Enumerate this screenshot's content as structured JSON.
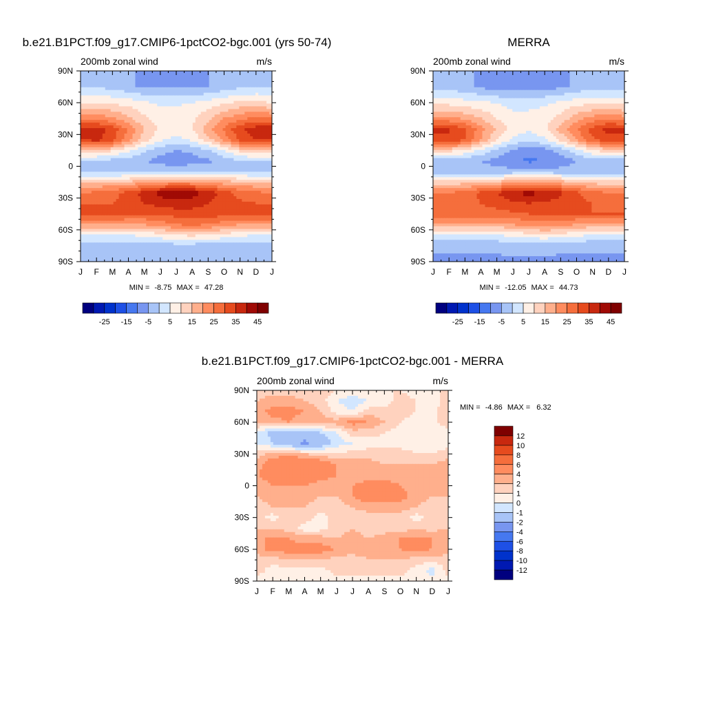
{
  "colors": {
    "full_field": [
      "#00007F",
      "#0019B2",
      "#0032CC",
      "#1E50E6",
      "#4678F0",
      "#7896F0",
      "#A8C4F7",
      "#D2E6FF",
      "#FFF0E6",
      "#FFD2BE",
      "#FFAF8C",
      "#FF8C5F",
      "#F56E3C",
      "#E64B1E",
      "#C8280F",
      "#A00A05",
      "#7F0000"
    ],
    "difference": [
      "#00007F",
      "#0019B2",
      "#0032CC",
      "#1E50E6",
      "#4678F0",
      "#7896F0",
      "#A8C4F7",
      "#D2E6FF",
      "#FFF0E6",
      "#FFD2BE",
      "#FFAF8C",
      "#FF8C5F",
      "#F56E3C",
      "#E64B1E",
      "#C8280F",
      "#7F0000"
    ]
  },
  "chart_data": [
    {
      "type": "heatmap",
      "title": "b.e21.B1PCT.f09_g17.CMIP6-1pctCO2-bgc.001 (yrs 50-74)",
      "left_label": "200mb zonal wind",
      "right_label": "m/s",
      "x_ticks": [
        "J",
        "F",
        "M",
        "A",
        "M",
        "J",
        "J",
        "A",
        "S",
        "O",
        "N",
        "D",
        "J"
      ],
      "y_ticks": [
        "90N",
        "60N",
        "30N",
        "0",
        "30S",
        "60S",
        "90S"
      ],
      "xlim": [
        0,
        12
      ],
      "ylim": [
        -90,
        90
      ],
      "stats": {
        "min_label": "MIN =",
        "min": "-8.75",
        "max_label": "MAX =",
        "max": "47.28"
      },
      "colorbar": {
        "orientation": "horizontal",
        "levels": [
          -30,
          -25,
          -20,
          -15,
          -10,
          -5,
          0,
          5,
          10,
          15,
          20,
          25,
          30,
          35,
          40,
          45
        ],
        "labels": [
          "-25",
          "-15",
          "-5",
          "5",
          "15",
          "25",
          "35",
          "45"
        ]
      },
      "field": {
        "lat": [
          90,
          75,
          60,
          45,
          35,
          25,
          15,
          5,
          -5,
          -15,
          -25,
          -35,
          -45,
          -55,
          -65,
          -75,
          -90
        ],
        "month": [
          0,
          1,
          2,
          3,
          4,
          5,
          6,
          7,
          8,
          9,
          10,
          11,
          12
        ],
        "values": [
          [
            -5,
            -5,
            -5,
            -5,
            -5,
            -5,
            -5,
            -5,
            -5,
            -5,
            -5,
            -5,
            -5
          ],
          [
            0,
            0,
            -2,
            -4,
            -6,
            -6,
            -6,
            -6,
            -5,
            -3,
            -1,
            0,
            0
          ],
          [
            10,
            10,
            9,
            8,
            6,
            4,
            4,
            5,
            7,
            9,
            11,
            11,
            10
          ],
          [
            25,
            24,
            21,
            16,
            11,
            8,
            8,
            9,
            14,
            20,
            24,
            26,
            25
          ],
          [
            38,
            37,
            33,
            24,
            15,
            9,
            7,
            10,
            18,
            26,
            34,
            38,
            38
          ],
          [
            35,
            37,
            32,
            22,
            12,
            6,
            3,
            6,
            13,
            22,
            31,
            35,
            35
          ],
          [
            15,
            14,
            11,
            6,
            1,
            -3,
            -5,
            -4,
            -1,
            5,
            12,
            15,
            15
          ],
          [
            0,
            -1,
            -2,
            -3,
            -5,
            -7,
            -8,
            -7,
            -6,
            -3,
            -1,
            0,
            0
          ],
          [
            -2,
            -2,
            -2,
            -2,
            -1,
            -1,
            -1,
            -1,
            -1,
            -1,
            -2,
            -2,
            -2
          ],
          [
            15,
            15,
            15,
            16,
            18,
            20,
            22,
            21,
            19,
            17,
            16,
            15,
            15
          ],
          [
            25,
            26,
            28,
            32,
            37,
            42,
            45,
            43,
            38,
            33,
            28,
            26,
            25
          ],
          [
            30,
            30,
            30,
            32,
            35,
            37,
            38,
            37,
            35,
            33,
            31,
            30,
            30
          ],
          [
            33,
            32,
            31,
            30,
            30,
            31,
            32,
            33,
            33,
            32,
            32,
            33,
            33
          ],
          [
            20,
            20,
            20,
            20,
            20,
            22,
            25,
            26,
            25,
            22,
            20,
            20,
            20
          ],
          [
            5,
            5,
            5,
            5,
            6,
            8,
            10,
            11,
            10,
            8,
            6,
            5,
            5
          ],
          [
            -3,
            -3,
            -3,
            -3,
            -3,
            -2,
            -2,
            -2,
            -3,
            -3,
            -3,
            -3,
            -3
          ],
          [
            -5,
            -5,
            -5,
            -5,
            -5,
            -5,
            -5,
            -5,
            -5,
            -5,
            -5,
            -5,
            -5
          ]
        ]
      }
    },
    {
      "type": "heatmap",
      "title": "MERRA",
      "left_label": "200mb zonal wind",
      "right_label": "m/s",
      "x_ticks": [
        "J",
        "F",
        "M",
        "A",
        "M",
        "J",
        "J",
        "A",
        "S",
        "O",
        "N",
        "D",
        "J"
      ],
      "y_ticks": [
        "90N",
        "60N",
        "30N",
        "0",
        "30S",
        "60S",
        "90S"
      ],
      "xlim": [
        0,
        12
      ],
      "ylim": [
        -90,
        90
      ],
      "stats": {
        "min_label": "MIN =",
        "min": "-12.05",
        "max_label": "MAX =",
        "max": "44.73"
      },
      "colorbar": {
        "orientation": "horizontal",
        "levels": [
          -30,
          -25,
          -20,
          -15,
          -10,
          -5,
          0,
          5,
          10,
          15,
          20,
          25,
          30,
          35,
          40,
          45
        ],
        "labels": [
          "-25",
          "-15",
          "-5",
          "5",
          "15",
          "25",
          "35",
          "45"
        ]
      },
      "field": {
        "lat": [
          90,
          75,
          60,
          45,
          35,
          25,
          15,
          5,
          -5,
          -15,
          -25,
          -35,
          -45,
          -55,
          -65,
          -75,
          -90
        ],
        "month": [
          0,
          1,
          2,
          3,
          4,
          5,
          6,
          7,
          8,
          9,
          10,
          11,
          12
        ],
        "values": [
          [
            -5,
            -5,
            -5,
            -5,
            -5,
            -5,
            -5,
            -5,
            -5,
            -5,
            -5,
            -5,
            -5
          ],
          [
            -2,
            -2,
            -4,
            -6,
            -8,
            -8,
            -8,
            -7,
            -6,
            -4,
            -2,
            -2,
            -2
          ],
          [
            8,
            8,
            7,
            6,
            5,
            3,
            3,
            4,
            6,
            8,
            9,
            9,
            8
          ],
          [
            22,
            22,
            19,
            15,
            10,
            7,
            7,
            8,
            12,
            18,
            22,
            24,
            22
          ],
          [
            36,
            35,
            31,
            22,
            14,
            8,
            6,
            9,
            17,
            25,
            32,
            37,
            36
          ],
          [
            34,
            35,
            30,
            20,
            10,
            4,
            1,
            4,
            11,
            20,
            29,
            33,
            34
          ],
          [
            13,
            12,
            9,
            4,
            -1,
            -6,
            -8,
            -7,
            -3,
            3,
            10,
            13,
            13
          ],
          [
            -3,
            -3,
            -4,
            -5,
            -7,
            -9,
            -11,
            -10,
            -8,
            -5,
            -3,
            -3,
            -3
          ],
          [
            -4,
            -4,
            -4,
            -3,
            -3,
            -3,
            -3,
            -3,
            -3,
            -3,
            -4,
            -4,
            -4
          ],
          [
            12,
            12,
            13,
            14,
            16,
            18,
            20,
            19,
            17,
            15,
            13,
            12,
            12
          ],
          [
            24,
            25,
            27,
            31,
            35,
            40,
            42,
            40,
            36,
            31,
            27,
            25,
            24
          ],
          [
            29,
            29,
            29,
            30,
            32,
            34,
            35,
            34,
            33,
            31,
            30,
            29,
            29
          ],
          [
            30,
            29,
            28,
            28,
            28,
            29,
            30,
            31,
            31,
            30,
            30,
            30,
            30
          ],
          [
            18,
            18,
            18,
            18,
            18,
            20,
            22,
            23,
            22,
            20,
            18,
            18,
            18
          ],
          [
            4,
            4,
            4,
            4,
            5,
            6,
            8,
            9,
            8,
            6,
            5,
            4,
            4
          ],
          [
            -4,
            -4,
            -4,
            -4,
            -4,
            -3,
            -3,
            -3,
            -4,
            -4,
            -4,
            -4,
            -4
          ],
          [
            -6,
            -6,
            -6,
            -6,
            -6,
            -6,
            -6,
            -6,
            -6,
            -6,
            -6,
            -6,
            -6
          ]
        ]
      }
    },
    {
      "type": "heatmap",
      "title": "b.e21.B1PCT.f09_g17.CMIP6-1pctCO2-bgc.001 - MERRA",
      "left_label": "200mb zonal wind",
      "right_label": "m/s",
      "x_ticks": [
        "J",
        "F",
        "M",
        "A",
        "M",
        "J",
        "J",
        "A",
        "S",
        "O",
        "N",
        "D",
        "J"
      ],
      "y_ticks": [
        "90N",
        "60N",
        "30N",
        "0",
        "30S",
        "60S",
        "90S"
      ],
      "xlim": [
        0,
        12
      ],
      "ylim": [
        -90,
        90
      ],
      "stats": {
        "min_label": "MIN =",
        "min": "-4.86",
        "max_label": "MAX =",
        "max": "6.32"
      },
      "colorbar": {
        "orientation": "vertical",
        "levels": [
          -14,
          -12,
          -10,
          -8,
          -6,
          -4,
          -2,
          -1,
          0,
          1,
          2,
          4,
          6,
          8,
          10,
          12
        ],
        "labels": [
          "12",
          "10",
          "8",
          "6",
          "4",
          "2",
          "1",
          "0",
          "-1",
          "-2",
          "-4",
          "-6",
          "-8",
          "-10",
          "-12"
        ]
      },
      "field": {
        "lat": [
          90,
          80,
          70,
          60,
          50,
          40,
          30,
          20,
          10,
          0,
          -10,
          -20,
          -30,
          -40,
          -50,
          -60,
          -70,
          -80,
          -90
        ],
        "month": [
          0,
          1,
          2,
          3,
          4,
          5,
          6,
          7,
          8,
          9,
          10,
          11,
          12
        ],
        "values": [
          [
            0.5,
            0.5,
            0.5,
            0.5,
            0.5,
            0,
            -0.5,
            0,
            0,
            0,
            -0.5,
            -0.5,
            0.5
          ],
          [
            1,
            1.5,
            1.5,
            1,
            0.5,
            -1,
            -1.5,
            -1,
            -0.5,
            0.5,
            0,
            -0.5,
            0.5
          ],
          [
            1.5,
            2.5,
            2.5,
            2,
            1,
            -0.5,
            -1,
            0.5,
            0.5,
            0.5,
            0,
            -0.5,
            1
          ],
          [
            1,
            1.5,
            2,
            1,
            1.5,
            1.5,
            2.5,
            2,
            1,
            0,
            -0.5,
            -0.5,
            1
          ],
          [
            -1,
            -2.5,
            -3,
            -3,
            -2,
            -1,
            0.5,
            0.5,
            0,
            -0.5,
            -0.5,
            -0.5,
            -1
          ],
          [
            -1,
            -2,
            -3,
            -4.5,
            -3,
            -1.5,
            -1,
            -0.5,
            -0.5,
            -0.5,
            -0.5,
            -0.5,
            -0.5
          ],
          [
            0.5,
            1.5,
            1.5,
            1,
            0.5,
            0,
            0.5,
            0.5,
            0.5,
            0.5,
            0,
            0,
            0.5
          ],
          [
            1.5,
            3,
            3.5,
            4,
            3,
            2,
            1.5,
            1.5,
            1,
            1,
            1,
            1,
            1.5
          ],
          [
            2,
            2.5,
            3,
            3,
            2.5,
            2,
            1.5,
            1.5,
            1.5,
            1.5,
            1.5,
            1.5,
            2
          ],
          [
            1.5,
            2,
            2,
            2,
            1.5,
            1.5,
            2,
            2.5,
            2.5,
            2,
            1.5,
            1.5,
            1.5
          ],
          [
            1,
            1.5,
            1.5,
            1.5,
            1,
            1,
            2,
            3,
            3,
            2.5,
            1.5,
            1,
            1
          ],
          [
            0.5,
            1,
            1,
            1,
            0.5,
            0.5,
            1,
            1.5,
            1.5,
            1.5,
            1,
            0.5,
            0.5
          ],
          [
            0.5,
            -0.5,
            0.5,
            0.5,
            -0.5,
            0.5,
            0.5,
            0.5,
            0.5,
            0.5,
            -0.5,
            0.5,
            0.5
          ],
          [
            1,
            1,
            0.5,
            -0.5,
            -0.5,
            0.5,
            1,
            0.5,
            0.5,
            0.5,
            1,
            0.5,
            1
          ],
          [
            2,
            2,
            2,
            1.5,
            1.5,
            1,
            1.5,
            1,
            1.5,
            2,
            2,
            2,
            2
          ],
          [
            1.5,
            2.5,
            2.5,
            2.5,
            2.5,
            2,
            1.5,
            1.5,
            2,
            2,
            2.5,
            2,
            1.5
          ],
          [
            0.5,
            0.5,
            1,
            1,
            1,
            0.5,
            0.5,
            1,
            1,
            1,
            0.5,
            0.5,
            0.5
          ],
          [
            0.5,
            -0.5,
            -0.5,
            -0.5,
            -0.5,
            0.5,
            0.5,
            0.5,
            0.5,
            0.5,
            -0.5,
            -1.5,
            0.5
          ],
          [
            -0.5,
            -0.5,
            -0.5,
            -0.5,
            -0.5,
            -0.5,
            -0.5,
            -0.5,
            -0.5,
            -0.5,
            -0.5,
            -0.5,
            -0.5
          ]
        ]
      }
    }
  ]
}
